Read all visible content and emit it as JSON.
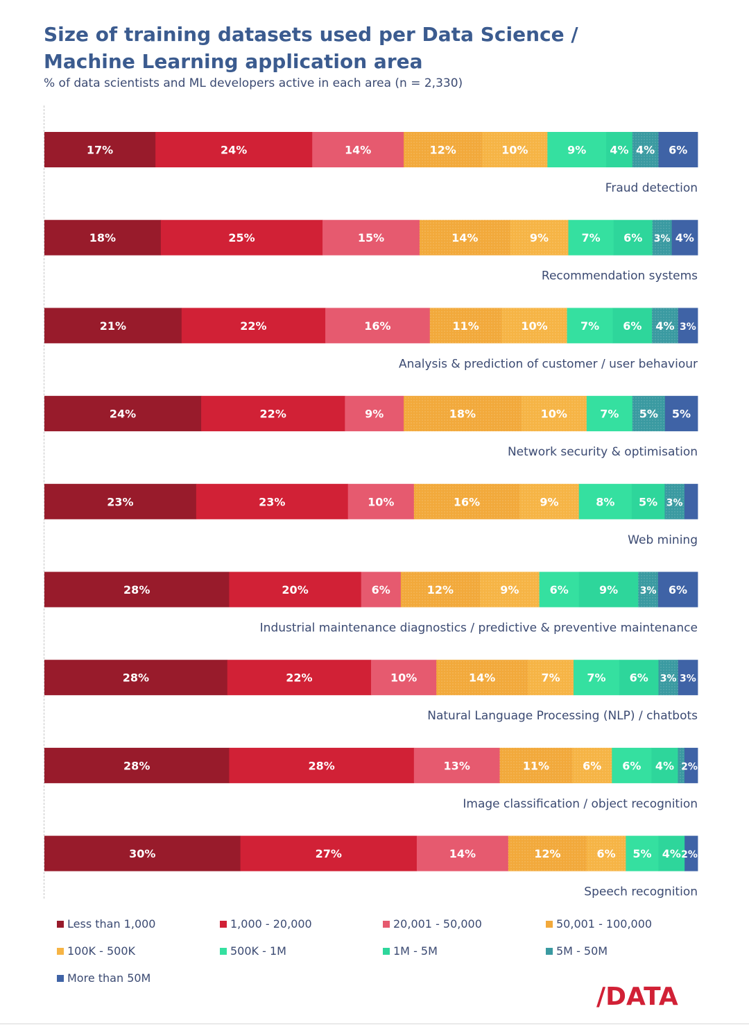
{
  "chart_data": {
    "type": "bar",
    "orientation": "horizontal",
    "stacked": true,
    "title": [
      "Size of training datasets used per Data Science /",
      "Machine Learning application area"
    ],
    "subtitle": "% of data scientists and ML developers active in each area (n = 2,330)",
    "categories": [
      "Fraud detection",
      "Recommendation systems",
      "Analysis & prediction of customer / user behaviour",
      "Network security & optimisation",
      "Web mining",
      "Industrial maintenance diagnostics / predictive & preventive maintenance",
      "Natural Language Processing (NLP) / chatbots",
      "Image classification / object recognition",
      "Speech recognition"
    ],
    "series": [
      {
        "name": "Less than 1,000",
        "color": "#981b2b",
        "values": [
          17,
          18,
          21,
          24,
          23,
          28,
          28,
          28,
          30
        ]
      },
      {
        "name": "1,000 - 20,000",
        "color": "#d12136",
        "values": [
          24,
          25,
          22,
          22,
          23,
          20,
          22,
          28,
          27
        ]
      },
      {
        "name": "20,001 - 50,000",
        "color": "#e65a6f",
        "values": [
          14,
          15,
          16,
          9,
          10,
          6,
          10,
          13,
          14
        ]
      },
      {
        "name": "50,001 - 100,000",
        "color": "#f2a93b",
        "values": [
          12,
          14,
          11,
          18,
          16,
          12,
          14,
          11,
          12
        ]
      },
      {
        "name": "100K - 500K",
        "color": "#f6b445",
        "values": [
          10,
          9,
          10,
          10,
          9,
          9,
          7,
          6,
          6
        ]
      },
      {
        "name": "500K - 1M",
        "color": "#35e0a0",
        "values": [
          9,
          7,
          7,
          7,
          8,
          6,
          7,
          6,
          5
        ]
      },
      {
        "name": "1M - 5M",
        "color": "#2ed69b",
        "values": [
          4,
          6,
          6,
          0,
          5,
          9,
          6,
          4,
          4
        ]
      },
      {
        "name": "5M - 50M",
        "color": "#3a9aa1",
        "values": [
          4,
          3,
          4,
          5,
          3,
          3,
          3,
          1,
          0
        ]
      },
      {
        "name": "More than 50M",
        "color": "#3f63a6",
        "values": [
          6,
          4,
          3,
          5,
          2,
          6,
          3,
          2,
          2
        ]
      }
    ],
    "value_labels": [
      [
        "17%",
        "24%",
        "14%",
        "12%",
        "10%",
        "9%",
        "4%",
        "4%",
        "6%"
      ],
      [
        "18%",
        "25%",
        "15%",
        "14%",
        "9%",
        "7%",
        "6%",
        "3%",
        "4%"
      ],
      [
        "21%",
        "22%",
        "16%",
        "11%",
        "10%",
        "7%",
        "6%",
        "4%",
        "3%"
      ],
      [
        "24%",
        "22%",
        "9%",
        "18%",
        "10%",
        "7%",
        "",
        "5%",
        "5%"
      ],
      [
        "23%",
        "23%",
        "10%",
        "16%",
        "9%",
        "8%",
        "5%",
        "3%",
        ""
      ],
      [
        "28%",
        "20%",
        "6%",
        "12%",
        "9%",
        "6%",
        "9%",
        "3%",
        "6%"
      ],
      [
        "28%",
        "22%",
        "10%",
        "14%",
        "7%",
        "7%",
        "6%",
        "3%",
        "3%"
      ],
      [
        "28%",
        "28%",
        "13%",
        "11%",
        "6%",
        "6%",
        "4%",
        "",
        "2%"
      ],
      [
        "30%",
        "27%",
        "14%",
        "12%",
        "6%",
        "5%",
        "4%",
        "",
        "2%"
      ]
    ],
    "units": "%",
    "legend_position": "bottom",
    "grid": false
  },
  "logo": {
    "text": "/DATA",
    "color": "#d12136"
  }
}
